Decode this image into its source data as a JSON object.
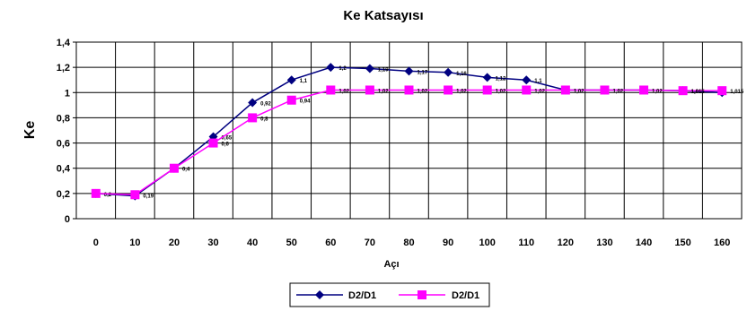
{
  "chart_data": {
    "type": "line",
    "title": "Ke Katsayısı",
    "xlabel": "Açı",
    "ylabel": "Ke",
    "x": [
      0,
      10,
      20,
      30,
      40,
      50,
      60,
      70,
      80,
      90,
      100,
      110,
      120,
      130,
      140,
      150,
      160
    ],
    "x_ticks": [
      "0",
      "10",
      "20",
      "30",
      "40",
      "50",
      "60",
      "70",
      "80",
      "90",
      "100",
      "110",
      "120",
      "130",
      "140",
      "150",
      "160"
    ],
    "ylim": [
      0,
      1.4
    ],
    "y_ticks": [
      "0",
      "0,2",
      "0,4",
      "0,6",
      "0,8",
      "1",
      "1,2",
      "1,4"
    ],
    "grid": true,
    "legend_position": "bottom",
    "series": [
      {
        "name": "D2/D1",
        "color": "#000080",
        "marker": "diamond",
        "values": [
          0.2,
          0.18,
          0.4,
          0.65,
          0.92,
          1.1,
          1.2,
          1.19,
          1.17,
          1.16,
          1.12,
          1.1,
          1.02,
          1.02,
          1.02,
          1.015,
          1.0
        ],
        "labels": [
          "0,2",
          "",
          "0,4",
          "0,65",
          "0,92",
          "1,1",
          "1,2",
          "1,19",
          "1,17",
          "1,16",
          "1,12",
          "1,1",
          "",
          "",
          "",
          "1,015",
          ""
        ]
      },
      {
        "name": "D2/D1",
        "color": "#ff00ff",
        "marker": "square",
        "values": [
          0.2,
          0.19,
          0.4,
          0.6,
          0.8,
          0.94,
          1.02,
          1.02,
          1.02,
          1.02,
          1.02,
          1.02,
          1.02,
          1.02,
          1.02,
          1.015,
          1.015
        ],
        "labels": [
          "",
          "0,19",
          "",
          "0,6",
          "0,8",
          "0,94",
          "1,02",
          "1,02",
          "1,02",
          "1,02",
          "1,02",
          "1,02",
          "1,02",
          "1,02",
          "1,02",
          "1,015",
          "1,015"
        ]
      }
    ]
  }
}
